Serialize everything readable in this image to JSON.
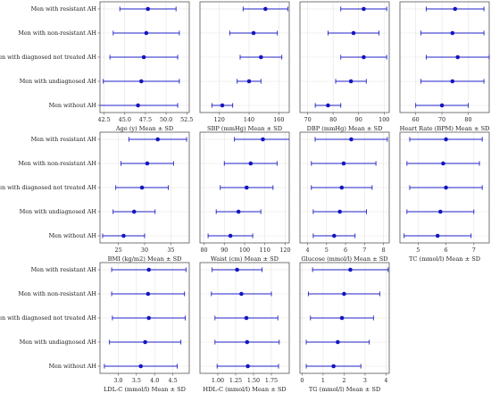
{
  "groups": [
    "Men with resistant AH",
    "Men with non-resistant AH",
    "Men with diagnosed not treated AH",
    "Men with undiagnosed AH",
    "Men without AH"
  ],
  "colors": {
    "marker": "#1616c0",
    "errorbar": "#2020c8",
    "grid": "#e3e3e3",
    "frame": "#555555"
  },
  "chart_data": [
    {
      "type": "scatter",
      "subtype": "errorbar",
      "xlabel": "Age (y) Mean ± SD",
      "xlim": [
        42.0,
        52.8
      ],
      "xticks": [
        "42.5",
        "45.0",
        "47.5",
        "50.0",
        "52.5"
      ],
      "xtick_values": [
        42.5,
        45.0,
        47.5,
        50.0,
        52.5
      ],
      "means": [
        47.8,
        47.6,
        47.3,
        47.0,
        46.6
      ],
      "sd": [
        3.4,
        4.0,
        4.1,
        4.6,
        4.8
      ],
      "grid": true
    },
    {
      "type": "scatter",
      "subtype": "errorbar",
      "xlabel": "SBP (mmHg) Mean ± SD",
      "xlim": [
        107,
        167
      ],
      "xticks": [
        "120",
        "140",
        "160"
      ],
      "xtick_values": [
        120,
        140,
        160
      ],
      "means": [
        151,
        143,
        148,
        140,
        122
      ],
      "sd": [
        15,
        16,
        14,
        8,
        7
      ],
      "grid": true
    },
    {
      "type": "scatter",
      "subtype": "errorbar",
      "xlabel": "DBP (mmHg) Mean ± SD",
      "xlim": [
        67,
        102
      ],
      "xticks": [
        "70",
        "80",
        "90",
        "100"
      ],
      "xtick_values": [
        70,
        80,
        90,
        100
      ],
      "means": [
        92,
        88,
        92,
        87,
        78
      ],
      "sd": [
        9,
        10,
        9,
        6,
        5
      ],
      "grid": true
    },
    {
      "type": "scatter",
      "subtype": "errorbar",
      "xlabel": "Heart Rate (BPM) Mean ± SD",
      "xlim": [
        54,
        88
      ],
      "xticks": [
        "60",
        "70",
        "80"
      ],
      "xtick_values": [
        60,
        70,
        80
      ],
      "means": [
        75,
        74,
        76,
        74,
        70
      ],
      "sd": [
        11,
        12,
        12,
        12,
        10
      ],
      "grid": true
    },
    {
      "type": "scatter",
      "subtype": "errorbar",
      "xlabel": "BMI (kg/m2) Mean ± SD",
      "xlim": [
        21.5,
        38.5
      ],
      "xticks": [
        "25",
        "30",
        "35"
      ],
      "xtick_values": [
        25,
        30,
        35
      ],
      "means": [
        32.5,
        30.5,
        29.5,
        28.0,
        26.0
      ],
      "sd": [
        5.5,
        5.0,
        5.0,
        4.0,
        4.0
      ],
      "grid": true
    },
    {
      "type": "scatter",
      "subtype": "errorbar",
      "xlabel": "Waist (cm) Mean ± SD",
      "xlim": [
        78,
        122
      ],
      "xticks": [
        "80",
        "90",
        "100",
        "110",
        "120"
      ],
      "xtick_values": [
        80,
        90,
        100,
        110,
        120
      ],
      "means": [
        109,
        103,
        101,
        97,
        93
      ],
      "sd": [
        14,
        13,
        13,
        11,
        11
      ],
      "grid": true
    },
    {
      "type": "scatter",
      "subtype": "errorbar",
      "xlabel": "Glucose (mmol/l) Mean ± SD",
      "xlim": [
        3.6,
        8.3
      ],
      "xticks": [
        "4",
        "5",
        "6",
        "7",
        "8"
      ],
      "xtick_values": [
        4,
        5,
        6,
        7,
        8
      ],
      "means": [
        6.3,
        5.9,
        5.8,
        5.7,
        5.4
      ],
      "sd": [
        1.9,
        1.7,
        1.6,
        1.4,
        1.1
      ],
      "grid": true
    },
    {
      "type": "scatter",
      "subtype": "errorbar",
      "xlabel": "TC (mmol/l) Mean ± SD",
      "xlim": [
        4.35,
        7.55
      ],
      "xticks": [
        "5",
        "6",
        "7"
      ],
      "xtick_values": [
        5,
        6,
        7
      ],
      "means": [
        6.0,
        5.9,
        6.0,
        5.8,
        5.7
      ],
      "sd": [
        1.3,
        1.3,
        1.3,
        1.2,
        1.2
      ],
      "grid": true
    },
    {
      "type": "scatter",
      "subtype": "errorbar",
      "xlabel": "LDL-C (mmol/l) Mean ± SD",
      "xlim": [
        2.5,
        4.95
      ],
      "xticks": [
        "3.0",
        "3.5",
        "4.0",
        "4.5"
      ],
      "xtick_values": [
        3.0,
        3.5,
        4.0,
        4.5
      ],
      "means": [
        3.84,
        3.82,
        3.84,
        3.74,
        3.62
      ],
      "sd": [
        1.02,
        1.0,
        1.0,
        0.98,
        1.0
      ],
      "grid": true
    },
    {
      "type": "scatter",
      "subtype": "errorbar",
      "xlabel": "HDL-C (mmol/l) Mean ± SD",
      "xlim": [
        0.75,
        2.0
      ],
      "xticks": [
        "1.00",
        "1.25",
        "1.50",
        "1.75"
      ],
      "xtick_values": [
        1.0,
        1.25,
        1.5,
        1.75
      ],
      "means": [
        1.27,
        1.33,
        1.4,
        1.41,
        1.42
      ],
      "sd": [
        0.35,
        0.42,
        0.44,
        0.45,
        0.43
      ],
      "grid": true
    },
    {
      "type": "scatter",
      "subtype": "errorbar",
      "xlabel": "TG (mmol/l) Mean ± SD",
      "xlim": [
        -0.1,
        4.15
      ],
      "xticks": [
        "0",
        "1",
        "2",
        "3",
        "4"
      ],
      "xtick_values": [
        0,
        1,
        2,
        3,
        4
      ],
      "means": [
        2.3,
        2.0,
        1.9,
        1.7,
        1.5
      ],
      "sd": [
        1.8,
        1.7,
        1.5,
        1.5,
        1.3
      ],
      "grid": true
    }
  ]
}
